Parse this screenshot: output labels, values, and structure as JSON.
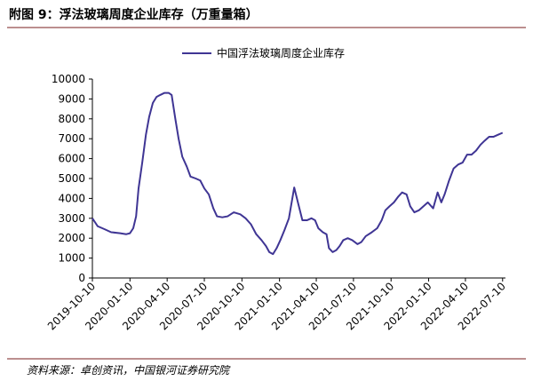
{
  "chart_data": {
    "type": "line",
    "title": "附图 9：浮法玻璃周度企业库存（万重量箱）",
    "source": "资料来源：卓创资讯，中国银河证券研究院",
    "x": [
      "2019-10-10",
      "2019-10-23",
      "2019-11-09",
      "2019-11-25",
      "2019-12-17",
      "2020-01-01",
      "2020-01-10",
      "2020-01-18",
      "2020-01-25",
      "2020-01-31",
      "2020-02-09",
      "2020-02-18",
      "2020-02-26",
      "2020-03-06",
      "2020-03-15",
      "2020-03-24",
      "2020-04-03",
      "2020-04-14",
      "2020-04-21",
      "2020-04-30",
      "2020-05-08",
      "2020-05-17",
      "2020-05-28",
      "2020-06-06",
      "2020-06-19",
      "2020-06-30",
      "2020-07-10",
      "2020-07-21",
      "2020-08-01",
      "2020-08-10",
      "2020-08-23",
      "2020-09-05",
      "2020-09-20",
      "2020-10-06",
      "2020-10-19",
      "2020-11-01",
      "2020-11-14",
      "2020-11-27",
      "2020-12-08",
      "2020-12-16",
      "2020-12-25",
      "2021-01-03",
      "2021-01-12",
      "2021-01-22",
      "2021-02-02",
      "2021-02-15",
      "2021-02-24",
      "2021-03-07",
      "2021-03-18",
      "2021-03-29",
      "2021-04-07",
      "2021-04-15",
      "2021-04-26",
      "2021-05-05",
      "2021-05-11",
      "2021-05-20",
      "2021-05-29",
      "2021-06-06",
      "2021-06-15",
      "2021-06-26",
      "2021-07-07",
      "2021-07-20",
      "2021-07-29",
      "2021-08-09",
      "2021-08-24",
      "2021-09-06",
      "2021-09-17",
      "2021-09-26",
      "2021-10-06",
      "2021-10-17",
      "2021-10-28",
      "2021-11-06",
      "2021-11-17",
      "2021-11-26",
      "2021-12-06",
      "2021-12-17",
      "2021-12-28",
      "2022-01-08",
      "2022-01-21",
      "2022-02-01",
      "2022-02-10",
      "2022-02-18",
      "2022-03-01",
      "2022-03-12",
      "2022-03-23",
      "2022-04-03",
      "2022-04-14",
      "2022-04-25",
      "2022-05-06",
      "2022-05-17",
      "2022-05-27",
      "2022-06-07",
      "2022-06-18",
      "2022-06-29",
      "2022-07-10"
    ],
    "series": [
      {
        "name": "中国浮法玻璃周度企业库存",
        "color": "#3f3594",
        "values": [
          3000,
          2600,
          2450,
          2300,
          2250,
          2200,
          2250,
          2500,
          3100,
          4500,
          5800,
          7200,
          8100,
          8800,
          9100,
          9200,
          9300,
          9300,
          9200,
          8000,
          7000,
          6100,
          5600,
          5100,
          5000,
          4900,
          4500,
          4200,
          3500,
          3100,
          3050,
          3100,
          3300,
          3200,
          3000,
          2700,
          2200,
          1900,
          1600,
          1300,
          1200,
          1500,
          1900,
          2400,
          3000,
          4550,
          3800,
          2900,
          2900,
          3000,
          2900,
          2500,
          2300,
          2200,
          1500,
          1300,
          1400,
          1600,
          1900,
          2000,
          1900,
          1700,
          1800,
          2100,
          2300,
          2500,
          2900,
          3400,
          3600,
          3800,
          4100,
          4300,
          4200,
          3600,
          3300,
          3400,
          3600,
          3800,
          3500,
          4300,
          3800,
          4200,
          4900,
          5500,
          5700,
          5800,
          6200,
          6200,
          6400,
          6700,
          6900,
          7100,
          7100,
          7200,
          7300
        ]
      }
    ],
    "xlim": [
      "2019-10-10",
      "2022-07-17"
    ],
    "xticks": [
      "2019-10-10",
      "2020-01-10",
      "2020-04-10",
      "2020-07-10",
      "2020-10-10",
      "2021-01-10",
      "2021-04-10",
      "2021-07-10",
      "2021-10-10",
      "2022-01-10",
      "2022-04-10",
      "2022-07-10"
    ],
    "ylim": [
      0,
      10000
    ],
    "yticks": [
      0,
      1000,
      2000,
      3000,
      4000,
      5000,
      6000,
      7000,
      8000,
      9000,
      10000
    ],
    "legend": "top"
  }
}
